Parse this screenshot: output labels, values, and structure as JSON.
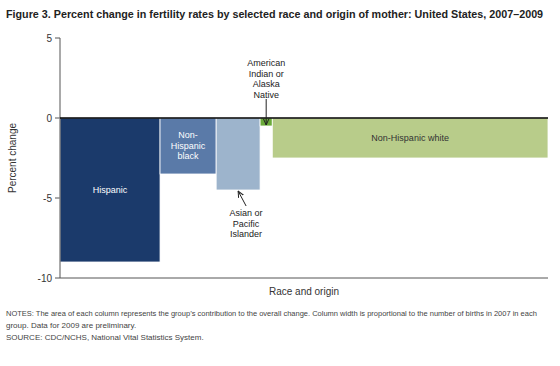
{
  "chart_data": {
    "type": "bar",
    "title": "Figure 3. Percent change in fertility rates by selected race and origin of mother: United States, 2007–2009",
    "xlabel": "Race and origin",
    "ylabel": "Percent change",
    "categories": [
      "Hispanic",
      "Non-\nHispanic\nblack",
      "Asian or\nPacific\nIslander",
      "American\nIndian or\nAlaska\nNative",
      "Non-Hispanic white"
    ],
    "values": [
      -9.0,
      -3.5,
      -4.5,
      -0.5,
      -2.5
    ],
    "widths": [
      0.205,
      0.115,
      0.09,
      0.025,
      0.565
    ],
    "colors": [
      "#1b3a6b",
      "#5a7aa8",
      "#9db4cc",
      "#6aaa3a",
      "#b8cc8a"
    ],
    "ylim": [
      -10,
      5
    ],
    "yticks": [
      -10,
      -5,
      0,
      5
    ],
    "notes": [
      "NOTES: The area of each column represents the group’s contribution to the overall change. Column width is proportional to the number of births in 2007 in each",
      "group. Data for 2009 are preliminary.",
      "SOURCE: CDC/NCHS, National Vital Statistics System."
    ]
  }
}
